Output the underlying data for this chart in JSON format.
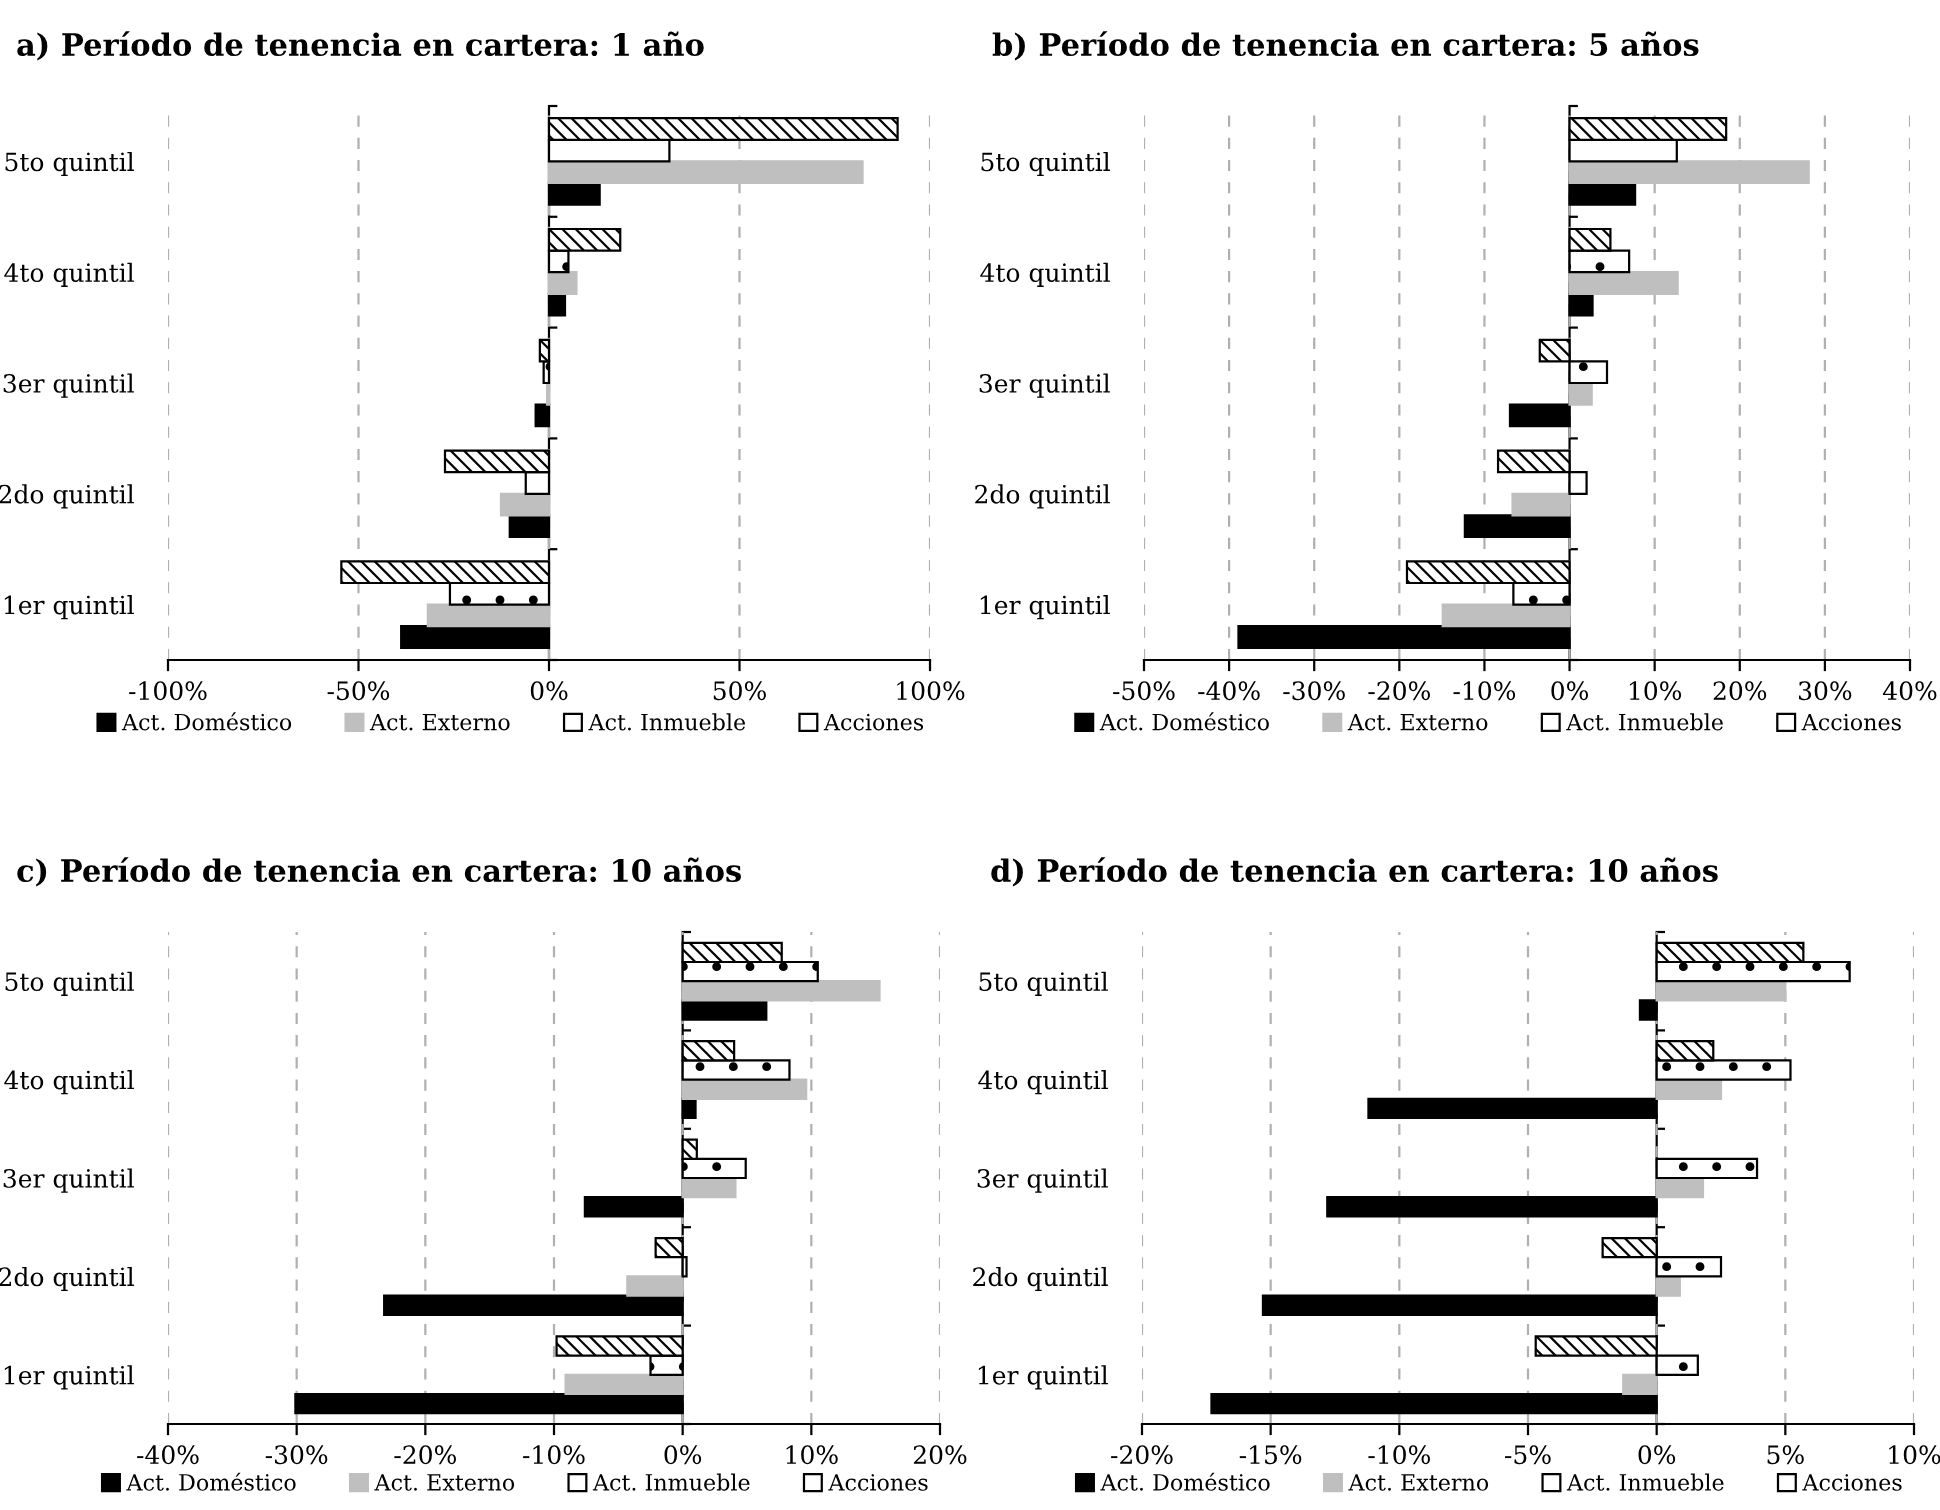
{
  "chart_data": [
    {
      "type": "bar",
      "orientation": "horizontal",
      "title": "a) Período de tenencia en cartera: 1 año",
      "categories": [
        "5to quintil",
        "4to quintil",
        "3er quintil",
        "2do quintil",
        "1er quintil"
      ],
      "xlim": [
        -100,
        100
      ],
      "xticks": [
        {
          "value": -100,
          "label": "-100%"
        },
        {
          "value": -50,
          "label": "-50%"
        },
        {
          "value": 0,
          "label": "0%"
        },
        {
          "value": 50,
          "label": "50%"
        },
        {
          "value": 100,
          "label": "100%"
        }
      ],
      "grid": "x",
      "legend": "bottom",
      "series": [
        {
          "name": "Act. Doméstico",
          "color": "#000000",
          "values": [
            13.3,
            4.2,
            -3.5,
            -10.3,
            -38.8
          ]
        },
        {
          "name": "Act. Externo",
          "color": "#bfbfbf",
          "values": [
            82.3,
            7.2,
            -0.5,
            -12.6,
            -31.8
          ]
        },
        {
          "name": "Act. Inmueble",
          "color": "#ffffff",
          "values": [
            31.6,
            5.1,
            -1.4,
            -6.1,
            -26.0
          ]
        },
        {
          "name": "Acciones",
          "color": "#ffffff",
          "values": [
            91.5,
            18.7,
            -2.4,
            -27.3,
            -54.5
          ]
        }
      ]
    },
    {
      "type": "bar",
      "orientation": "horizontal",
      "title": "b) Período de tenencia en cartera: 5 años",
      "categories": [
        "5to quintil",
        "4to quintil",
        "3er quintil",
        "2do quintil",
        "1er quintil"
      ],
      "xlim": [
        -50,
        40
      ],
      "xticks": [
        {
          "value": -50,
          "label": "-50%"
        },
        {
          "value": -40,
          "label": "-40%"
        },
        {
          "value": -30,
          "label": "-30%"
        },
        {
          "value": -20,
          "label": "-20%"
        },
        {
          "value": -10,
          "label": "-10%"
        },
        {
          "value": 0,
          "label": "0%"
        },
        {
          "value": 10,
          "label": "10%"
        },
        {
          "value": 20,
          "label": "20%"
        },
        {
          "value": 30,
          "label": "30%"
        },
        {
          "value": 40,
          "label": "40%"
        }
      ],
      "grid": "x",
      "legend": "bottom",
      "series": [
        {
          "name": "Act. Doméstico",
          "color": "#000000",
          "values": [
            7.7,
            2.7,
            -7.0,
            -12.3,
            -38.9
          ]
        },
        {
          "name": "Act. Externo",
          "color": "#bfbfbf",
          "values": [
            28.1,
            12.7,
            2.6,
            -6.7,
            -14.9
          ]
        },
        {
          "name": "Act. Inmueble",
          "color": "#ffffff",
          "values": [
            12.6,
            7.0,
            4.4,
            2.0,
            -6.6
          ]
        },
        {
          "name": "Acciones",
          "color": "#ffffff",
          "values": [
            18.4,
            4.8,
            -3.5,
            -8.4,
            -19.1
          ]
        }
      ]
    },
    {
      "type": "bar",
      "orientation": "horizontal",
      "title": "c) Período de tenencia en cartera: 10 años",
      "categories": [
        "5to quintil",
        "4to quintil",
        "3er quintil",
        "2do quintil",
        "1er quintil"
      ],
      "xlim": [
        -40,
        20
      ],
      "xticks": [
        {
          "value": -40,
          "label": "-40%"
        },
        {
          "value": -30,
          "label": "-30%"
        },
        {
          "value": -20,
          "label": "-20%"
        },
        {
          "value": -10,
          "label": "-10%"
        },
        {
          "value": 0,
          "label": "0%"
        },
        {
          "value": 10,
          "label": "10%"
        },
        {
          "value": 20,
          "label": "20%"
        }
      ],
      "grid": "x",
      "legend": "bottom",
      "series": [
        {
          "name": "Act. Doméstico",
          "color": "#000000",
          "values": [
            6.5,
            1.0,
            -7.6,
            -23.2,
            -30.1
          ]
        },
        {
          "name": "Act. Externo",
          "color": "#bfbfbf",
          "values": [
            15.3,
            9.6,
            4.1,
            -4.3,
            -9.1
          ]
        },
        {
          "name": "Act. Inmueble",
          "color": "#ffffff",
          "values": [
            10.5,
            8.3,
            4.9,
            0.3,
            -2.5
          ]
        },
        {
          "name": "Acciones",
          "color": "#ffffff",
          "values": [
            7.7,
            4.0,
            1.1,
            -2.1,
            -9.8
          ]
        }
      ]
    },
    {
      "type": "bar",
      "orientation": "horizontal",
      "title": "d) Período de tenencia en cartera: 10 años",
      "categories": [
        "5to quintil",
        "4to quintil",
        "3er quintil",
        "2do quintil",
        "1er quintil"
      ],
      "xlim": [
        -20,
        10
      ],
      "xticks": [
        {
          "value": -20,
          "label": "-20%"
        },
        {
          "value": -15,
          "label": "-15%"
        },
        {
          "value": -10,
          "label": "-10%"
        },
        {
          "value": -5,
          "label": "-5%"
        },
        {
          "value": 0,
          "label": "0%"
        },
        {
          "value": 5,
          "label": "5%"
        },
        {
          "value": 10,
          "label": "10%"
        }
      ],
      "grid": "x",
      "legend": "bottom",
      "series": [
        {
          "name": "Act. Doméstico",
          "color": "#000000",
          "values": [
            -0.65,
            -11.2,
            -12.8,
            -15.3,
            -17.3
          ]
        },
        {
          "name": "Act. Externo",
          "color": "#bfbfbf",
          "values": [
            5.0,
            2.5,
            1.8,
            0.9,
            -1.3
          ]
        },
        {
          "name": "Act. Inmueble",
          "color": "#ffffff",
          "values": [
            7.5,
            5.2,
            3.9,
            2.5,
            1.6
          ]
        },
        {
          "name": "Acciones",
          "color": "#ffffff",
          "values": [
            5.7,
            2.2,
            null,
            -2.1,
            -4.7
          ]
        }
      ]
    }
  ]
}
